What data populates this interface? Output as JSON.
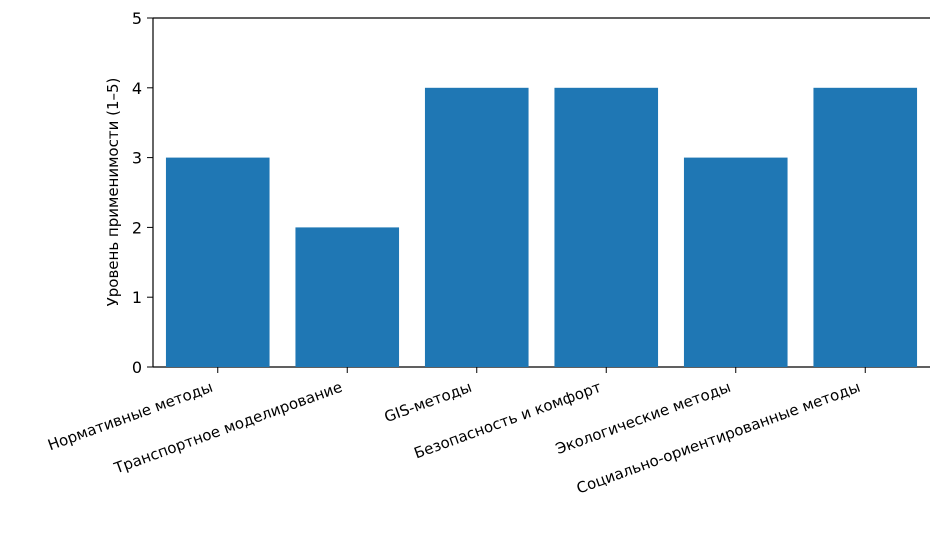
{
  "chart_data": {
    "type": "bar",
    "ylabel": "Уровень применимости (1–5)",
    "categories": [
      "Нормативные методы",
      "Транспортное моделирование",
      "GIS-методы",
      "Безопасность и комфорт",
      "Экологические методы",
      "Социально-ориентированные методы"
    ],
    "values": [
      3,
      2,
      4,
      4,
      3,
      4
    ],
    "ylim": [
      0,
      5
    ],
    "yticks": [
      "0",
      "1",
      "2",
      "3",
      "4",
      "5"
    ],
    "bar_color": "#1f77b4",
    "grid": false,
    "legend": "none"
  }
}
